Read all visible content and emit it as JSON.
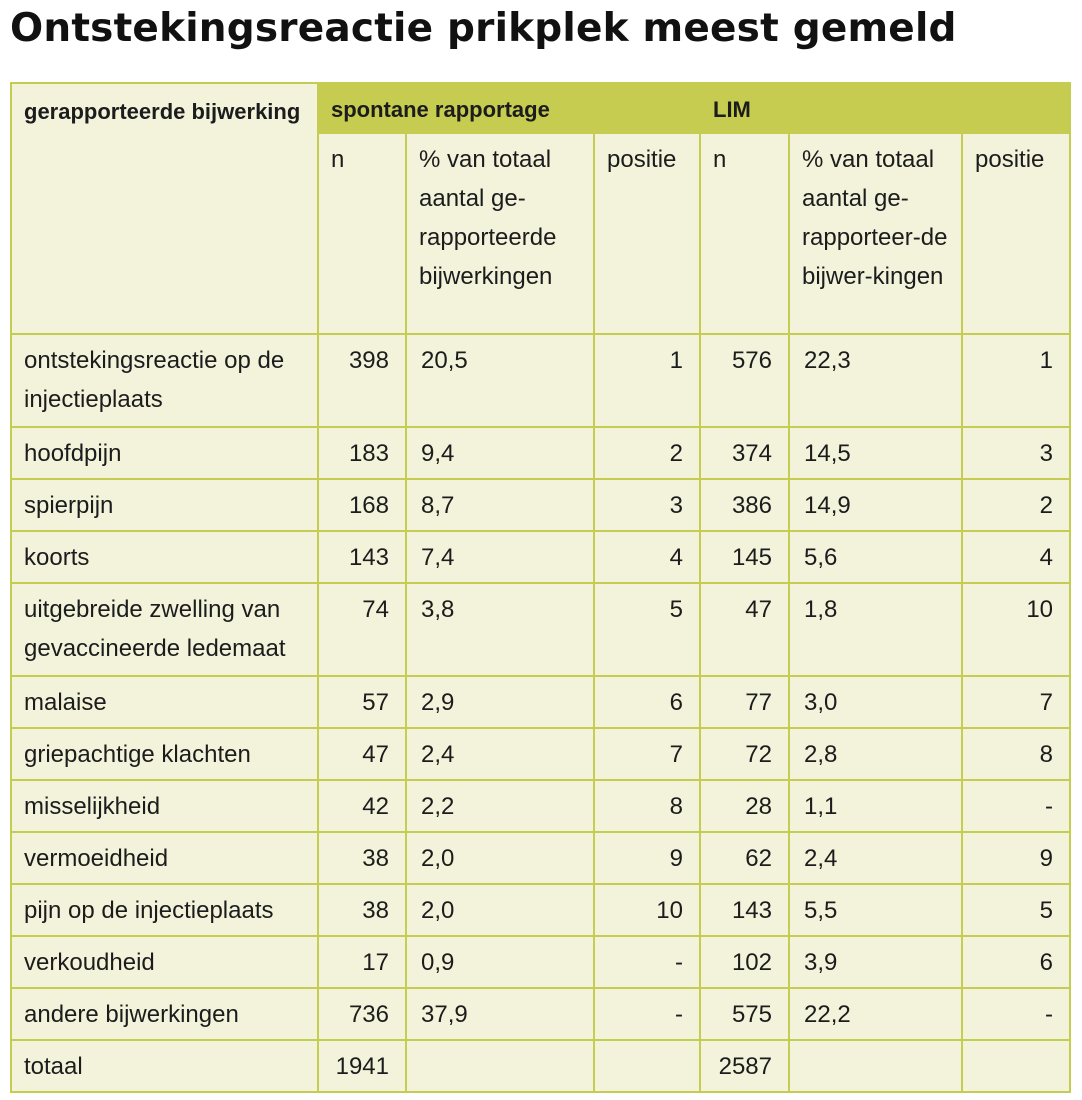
{
  "title": "Ontstekingsreactie prikplek meest gemeld",
  "table": {
    "header": {
      "first_col": "gerapporteerde bijwerking",
      "group_spontaan": "spontane rapportage",
      "group_lim": "LIM",
      "spontaan_n": "n",
      "spontaan_pct": "% van totaal aantal ge-rapporteerde bijwerkingen",
      "spontaan_pos": "positie",
      "lim_n": "n",
      "lim_pct": "% van totaal aantal ge-rapporteer-de bijwer-kingen",
      "lim_pos": "positie"
    },
    "rows": [
      {
        "label": "ontstekingsreactie op de injectieplaats",
        "sn": "398",
        "sp": "20,5",
        "spos": "1",
        "ln": "576",
        "lp": "22,3",
        "lpos": "1"
      },
      {
        "label": "hoofdpijn",
        "sn": "183",
        "sp": "9,4",
        "spos": "2",
        "ln": "374",
        "lp": "14,5",
        "lpos": "3"
      },
      {
        "label": "spierpijn",
        "sn": "168",
        "sp": "8,7",
        "spos": "3",
        "ln": "386",
        "lp": "14,9",
        "lpos": "2"
      },
      {
        "label": "koorts",
        "sn": "143",
        "sp": "7,4",
        "spos": "4",
        "ln": "145",
        "lp": "5,6",
        "lpos": "4"
      },
      {
        "label": "uitgebreide zwelling van gevaccineerde ledemaat",
        "sn": "74",
        "sp": "3,8",
        "spos": "5",
        "ln": "47",
        "lp": "1,8",
        "lpos": "10"
      },
      {
        "label": "malaise",
        "sn": "57",
        "sp": "2,9",
        "spos": "6",
        "ln": "77",
        "lp": "3,0",
        "lpos": "7"
      },
      {
        "label": "griepachtige klachten",
        "sn": "47",
        "sp": "2,4",
        "spos": "7",
        "ln": "72",
        "lp": "2,8",
        "lpos": "8"
      },
      {
        "label": "misselijkheid",
        "sn": "42",
        "sp": "2,2",
        "spos": "8",
        "ln": "28",
        "lp": "1,1",
        "lpos": "-"
      },
      {
        "label": "vermoeidheid",
        "sn": "38",
        "sp": "2,0",
        "spos": "9",
        "ln": "62",
        "lp": "2,4",
        "lpos": "9"
      },
      {
        "label": "pijn op de injectieplaats",
        "sn": "38",
        "sp": "2,0",
        "spos": "10",
        "ln": "143",
        "lp": "5,5",
        "lpos": "5"
      },
      {
        "label": "verkoudheid",
        "sn": "17",
        "sp": "0,9",
        "spos": "-",
        "ln": "102",
        "lp": "3,9",
        "lpos": "6"
      },
      {
        "label": "andere bijwerkingen",
        "sn": "736",
        "sp": "37,9",
        "spos": "-",
        "ln": "575",
        "lp": "22,2",
        "lpos": "-"
      },
      {
        "label": "totaal",
        "sn": "1941",
        "sp": "",
        "spos": "",
        "ln": "2587",
        "lp": "",
        "lpos": ""
      }
    ]
  },
  "colors": {
    "accent": "#c5cc4f",
    "cell_background": "#f3f3dc"
  }
}
